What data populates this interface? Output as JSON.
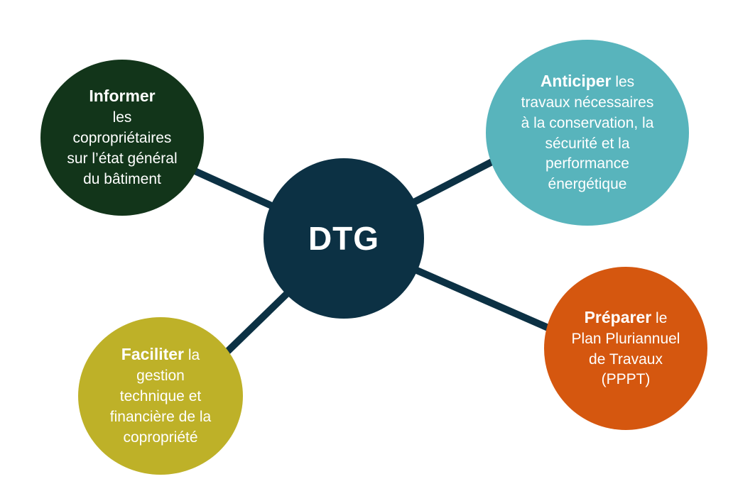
{
  "center": {
    "label": "DTG"
  },
  "colors": {
    "center": "#0c3144",
    "informer": "#12351a",
    "anticiper": "#58b4bc",
    "preparer": "#d5570f",
    "faciliter": "#beb128",
    "connector": "#0c3144"
  },
  "nodes": {
    "informer": {
      "keyword": "Informer",
      "lines": [
        "les",
        "copropriétaires",
        "sur l’état général",
        "du bâtiment"
      ]
    },
    "anticiper": {
      "keyword": "Anticiper",
      "rest": " les",
      "lines": [
        "travaux nécessaires",
        "à la conservation, la",
        "sécurité et la",
        "performance",
        "énergétique"
      ]
    },
    "preparer": {
      "keyword": "Préparer",
      "rest": " le",
      "lines": [
        "Plan Pluriannuel",
        "de Travaux",
        "(PPPT)"
      ]
    },
    "faciliter": {
      "keyword": "Faciliter",
      "rest": " la",
      "lines": [
        "gestion",
        "technique et",
        "financière de la",
        "copropriété"
      ]
    }
  }
}
